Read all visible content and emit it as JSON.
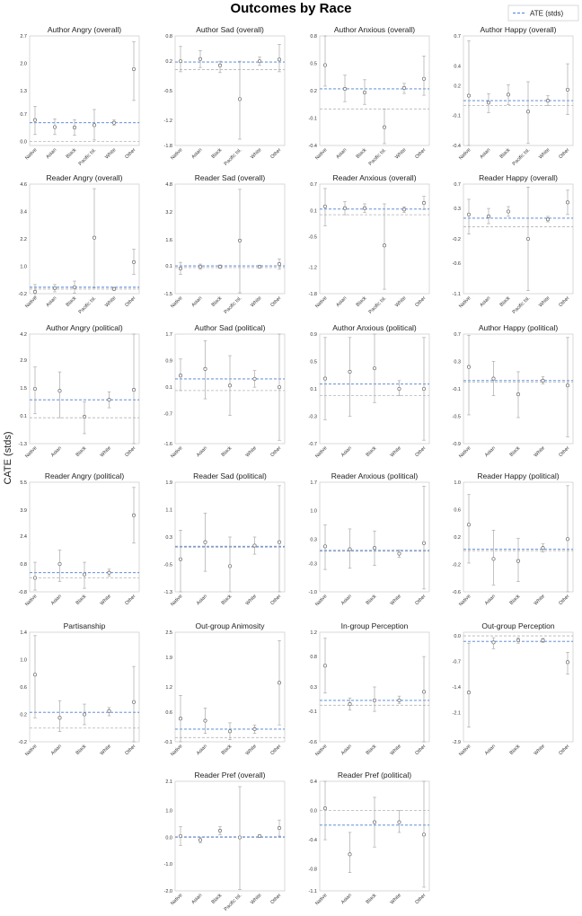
{
  "figure": {
    "title": "Outcomes by Race",
    "ylabel": "CATE (stds)",
    "legend_label": "ATE (stds)",
    "colors": {
      "ate_line": "#4a7fd6",
      "zero_line": "#b5b5b5",
      "errorbar": "#aaaaaa",
      "marker_edge": "#6b6b6b",
      "frame": "#d0d0d0"
    }
  },
  "chart_data": [
    {
      "type": "scatter",
      "title": "Author Angry (overall)",
      "categories": [
        "Native",
        "Asian",
        "Black",
        "Pacific Isl.",
        "White",
        "Other"
      ],
      "values": [
        0.55,
        0.37,
        0.36,
        0.42,
        0.48,
        1.85
      ],
      "lower": [
        0.18,
        0.18,
        0.16,
        0.04,
        0.42,
        1.05
      ],
      "upper": [
        0.9,
        0.58,
        0.56,
        0.82,
        0.55,
        2.55
      ],
      "ate": 0.48,
      "ylim": [
        -0.1,
        2.7
      ],
      "yticks": [
        "0.0",
        "0.7",
        "1.3",
        "2.0",
        "2.7"
      ],
      "ytick_values": [
        0.0,
        0.7,
        1.3,
        2.0,
        2.7
      ]
    },
    {
      "type": "scatter",
      "title": "Author Sad (overall)",
      "categories": [
        "Native",
        "Asian",
        "Black",
        "Pacific Isl.",
        "White",
        "Other"
      ],
      "values": [
        0.2,
        0.25,
        0.1,
        -0.7,
        0.2,
        0.24
      ],
      "lower": [
        -0.05,
        0.05,
        -0.07,
        -1.65,
        0.1,
        -0.05
      ],
      "upper": [
        0.55,
        0.45,
        0.2,
        0.2,
        0.3,
        0.6
      ],
      "ate": 0.18,
      "ylim": [
        -1.8,
        0.8
      ],
      "yticks": [
        "-1.8",
        "-1.2",
        "-0.5",
        "0.2",
        "0.8"
      ],
      "ytick_values": [
        -1.8,
        -1.2,
        -0.5,
        0.2,
        0.8
      ]
    },
    {
      "type": "scatter",
      "title": "Author Anxious (overall)",
      "categories": [
        "Native",
        "Asian",
        "Black",
        "Pacific Isl.",
        "White",
        "Other"
      ],
      "values": [
        0.48,
        0.22,
        0.18,
        -0.2,
        0.23,
        0.33
      ],
      "lower": [
        0.25,
        0.08,
        0.05,
        -0.38,
        0.17,
        0.15
      ],
      "upper": [
        0.8,
        0.37,
        0.32,
        0.0,
        0.28,
        0.58
      ],
      "ate": 0.22,
      "ylim": [
        -0.4,
        0.8
      ],
      "yticks": [
        "-0.4",
        "-0.1",
        "0.2",
        "0.5",
        "0.8"
      ],
      "ytick_values": [
        -0.4,
        -0.1,
        0.2,
        0.5,
        0.8
      ]
    },
    {
      "type": "scatter",
      "title": "Author Happy (overall)",
      "categories": [
        "Native",
        "Asian",
        "Black",
        "Pacific Isl.",
        "White",
        "Other"
      ],
      "values": [
        0.1,
        0.03,
        0.11,
        -0.06,
        0.05,
        0.16
      ],
      "lower": [
        -0.4,
        -0.07,
        0.01,
        -0.38,
        0.0,
        -0.09
      ],
      "upper": [
        0.65,
        0.12,
        0.21,
        0.24,
        0.1,
        0.42
      ],
      "ate": 0.05,
      "ylim": [
        -0.4,
        0.7
      ],
      "yticks": [
        "-0.4",
        "-0.1",
        "0.2",
        "0.4",
        "0.7"
      ],
      "ytick_values": [
        -0.4,
        -0.1,
        0.2,
        0.4,
        0.7
      ]
    },
    {
      "type": "scatter",
      "title": "Reader Angry (overall)",
      "categories": [
        "Native",
        "Asian",
        "Black",
        "Pacific Isl.",
        "White",
        "Other"
      ],
      "values": [
        -0.12,
        0.04,
        0.08,
        2.25,
        0.01,
        1.18
      ],
      "lower": [
        -0.35,
        -0.12,
        -0.18,
        0.05,
        -0.06,
        0.65
      ],
      "upper": [
        0.2,
        0.2,
        0.35,
        4.4,
        0.08,
        1.75
      ],
      "ate": 0.08,
      "ylim": [
        -0.2,
        4.6
      ],
      "yticks": [
        "-0.2",
        "1.0",
        "2.2",
        "3.4",
        "4.6"
      ],
      "ytick_values": [
        -0.2,
        1.0,
        2.2,
        3.4,
        4.6
      ]
    },
    {
      "type": "scatter",
      "title": "Reader Sad (overall)",
      "categories": [
        "Native",
        "Asian",
        "Black",
        "Pacific Isl.",
        "White",
        "Other"
      ],
      "values": [
        -0.05,
        0.05,
        0.05,
        1.55,
        0.05,
        0.2
      ],
      "lower": [
        -0.4,
        -0.1,
        -0.05,
        -1.45,
        0.0,
        -0.1
      ],
      "upper": [
        0.3,
        0.2,
        0.15,
        4.5,
        0.12,
        0.5
      ],
      "ate": 0.1,
      "ylim": [
        -1.5,
        4.8
      ],
      "yticks": [
        "-1.5",
        "0.1",
        "1.6",
        "3.2",
        "4.8"
      ],
      "ytick_values": [
        -1.5,
        0.1,
        1.6,
        3.2,
        4.8
      ]
    },
    {
      "type": "scatter",
      "title": "Reader Anxious (overall)",
      "categories": [
        "Native",
        "Asian",
        "Black",
        "Pacific Isl.",
        "White",
        "Other"
      ],
      "values": [
        0.19,
        0.15,
        0.15,
        -0.7,
        0.12,
        0.27
      ],
      "lower": [
        -0.25,
        0.0,
        0.05,
        -1.7,
        0.05,
        0.12
      ],
      "upper": [
        0.6,
        0.3,
        0.25,
        0.25,
        0.18,
        0.42
      ],
      "ate": 0.13,
      "ylim": [
        -1.8,
        0.7
      ],
      "yticks": [
        "-1.8",
        "-1.2",
        "-0.5",
        "0.1",
        "0.7"
      ],
      "ytick_values": [
        -1.8,
        -1.2,
        -0.5,
        0.1,
        0.7
      ]
    },
    {
      "type": "scatter",
      "title": "Reader Happy (overall)",
      "categories": [
        "Native",
        "Asian",
        "Black",
        "Pacific Isl.",
        "White",
        "Other"
      ],
      "values": [
        0.2,
        0.17,
        0.25,
        -0.2,
        0.12,
        0.4
      ],
      "lower": [
        -0.12,
        0.05,
        0.17,
        -1.05,
        0.08,
        0.2
      ],
      "upper": [
        0.45,
        0.3,
        0.33,
        0.65,
        0.17,
        0.6
      ],
      "ate": 0.14,
      "ylim": [
        -1.1,
        0.7
      ],
      "yticks": [
        "-1.1",
        "-0.6",
        "-0.2",
        "0.3",
        "0.7"
      ],
      "ytick_values": [
        -1.1,
        -0.6,
        -0.2,
        0.3,
        0.7
      ]
    },
    {
      "type": "scatter",
      "title": "Author Angry (political)",
      "categories": [
        "Native",
        "Asian",
        "Black",
        "White",
        "Other"
      ],
      "values": [
        1.45,
        1.35,
        0.05,
        0.9,
        1.4
      ],
      "lower": [
        0.2,
        0.0,
        -0.8,
        0.5,
        -1.3
      ],
      "upper": [
        2.55,
        2.3,
        0.8,
        1.3,
        4.2
      ],
      "ate": 0.9,
      "ylim": [
        -1.3,
        4.2
      ],
      "yticks": [
        "-1.3",
        "0.1",
        "1.5",
        "2.9",
        "4.2"
      ],
      "ytick_values": [
        -1.3,
        0.1,
        1.5,
        2.9,
        4.2
      ]
    },
    {
      "type": "scatter",
      "title": "Author Sad (political)",
      "categories": [
        "Native",
        "Asian",
        "Black",
        "White",
        "Other"
      ],
      "values": [
        0.45,
        0.65,
        0.15,
        0.35,
        0.1
      ],
      "lower": [
        0.0,
        -0.25,
        -0.75,
        0.1,
        -1.5
      ],
      "upper": [
        0.95,
        1.5,
        1.05,
        0.6,
        1.7
      ],
      "ate": 0.35,
      "ylim": [
        -1.6,
        1.7
      ],
      "yticks": [
        "-1.6",
        "-0.7",
        "0.1",
        "0.9",
        "1.7"
      ],
      "ytick_values": [
        -1.6,
        -0.7,
        0.1,
        0.9,
        1.7
      ]
    },
    {
      "type": "scatter",
      "title": "Author Anxious (political)",
      "categories": [
        "Native",
        "Asian",
        "Black",
        "White",
        "Other"
      ],
      "values": [
        0.25,
        0.35,
        0.4,
        0.1,
        0.1
      ],
      "lower": [
        -0.35,
        -0.3,
        -0.1,
        0.0,
        -0.65
      ],
      "upper": [
        0.85,
        0.85,
        0.9,
        0.22,
        0.85
      ],
      "ate": 0.17,
      "ylim": [
        -0.7,
        0.9
      ],
      "yticks": [
        "-0.7",
        "-0.3",
        "0.1",
        "0.5",
        "0.9"
      ],
      "ytick_values": [
        -0.7,
        -0.3,
        0.1,
        0.5,
        0.9
      ]
    },
    {
      "type": "scatter",
      "title": "Author Happy (political)",
      "categories": [
        "Native",
        "Asian",
        "Black",
        "White",
        "Other"
      ],
      "values": [
        0.22,
        0.05,
        -0.18,
        0.02,
        -0.05
      ],
      "lower": [
        -0.48,
        -0.2,
        -0.52,
        -0.03,
        -0.8
      ],
      "upper": [
        0.68,
        0.3,
        0.15,
        0.08,
        0.65
      ],
      "ate": 0.02,
      "ylim": [
        -0.9,
        0.7
      ],
      "yticks": [
        "-0.9",
        "-0.5",
        "-0.1",
        "0.3",
        "0.7"
      ],
      "ytick_values": [
        -0.9,
        -0.5,
        -0.1,
        0.3,
        0.7
      ]
    },
    {
      "type": "scatter",
      "title": "Reader Angry (political)",
      "categories": [
        "Native",
        "Asian",
        "Black",
        "White",
        "Other"
      ],
      "values": [
        0.0,
        0.8,
        0.2,
        0.3,
        3.6
      ],
      "lower": [
        -0.7,
        -0.2,
        -0.6,
        0.1,
        2.0
      ],
      "upper": [
        0.9,
        1.6,
        0.9,
        0.5,
        5.2
      ],
      "ate": 0.3,
      "ylim": [
        -0.8,
        5.5
      ],
      "yticks": [
        "-0.8",
        "0.8",
        "2.4",
        "3.9",
        "5.5"
      ],
      "ytick_values": [
        -0.8,
        0.8,
        2.4,
        3.9,
        5.5
      ]
    },
    {
      "type": "scatter",
      "title": "Reader Sad (political)",
      "categories": [
        "Native",
        "Asian",
        "Black",
        "White",
        "Other"
      ],
      "values": [
        -0.35,
        0.15,
        -0.55,
        0.05,
        0.15
      ],
      "lower": [
        -1.3,
        -0.7,
        -1.3,
        -0.2,
        -1.3
      ],
      "upper": [
        0.5,
        1.0,
        0.3,
        0.3,
        1.8
      ],
      "ate": 0.03,
      "ylim": [
        -1.3,
        1.9
      ],
      "yticks": [
        "-1.3",
        "-0.5",
        "0.3",
        "1.1",
        "1.9"
      ],
      "ytick_values": [
        -1.3,
        -0.5,
        0.3,
        1.1,
        1.9
      ]
    },
    {
      "type": "scatter",
      "title": "Reader Anxious (political)",
      "categories": [
        "Native",
        "Asian",
        "Black",
        "White",
        "Other"
      ],
      "values": [
        0.12,
        0.05,
        0.08,
        -0.06,
        0.2
      ],
      "lower": [
        -0.45,
        -0.42,
        -0.35,
        -0.15,
        -0.93
      ],
      "upper": [
        0.65,
        0.55,
        0.5,
        0.03,
        1.6
      ],
      "ate": 0.02,
      "ylim": [
        -1.0,
        1.7
      ],
      "yticks": [
        "-1.0",
        "-0.3",
        "0.3",
        "1.0",
        "1.7"
      ],
      "ytick_values": [
        -1.0,
        -0.3,
        0.3,
        1.0,
        1.7
      ]
    },
    {
      "type": "scatter",
      "title": "Reader Happy (political)",
      "categories": [
        "Native",
        "Asian",
        "Black",
        "White",
        "Other"
      ],
      "values": [
        0.38,
        -0.12,
        -0.15,
        0.04,
        0.17
      ],
      "lower": [
        -0.18,
        -0.5,
        -0.45,
        -0.02,
        -0.6
      ],
      "upper": [
        0.82,
        0.3,
        0.18,
        0.1,
        0.95
      ],
      "ate": 0.02,
      "ylim": [
        -0.6,
        1.0
      ],
      "yticks": [
        "-0.6",
        "-0.2",
        "0.2",
        "0.6",
        "1.0"
      ],
      "ytick_values": [
        -0.6,
        -0.2,
        0.2,
        0.6,
        1.0
      ]
    },
    {
      "type": "scatter",
      "title": "Partisanship",
      "categories": [
        "Native",
        "Asian",
        "Black",
        "White",
        "Other"
      ],
      "values": [
        0.78,
        0.15,
        0.2,
        0.25,
        0.38
      ],
      "lower": [
        0.15,
        -0.05,
        0.05,
        0.18,
        -0.2
      ],
      "upper": [
        1.35,
        0.4,
        0.35,
        0.3,
        0.9
      ],
      "ate": 0.23,
      "ylim": [
        -0.2,
        1.4
      ],
      "yticks": [
        "-0.2",
        "0.2",
        "0.6",
        "1.0",
        "1.4"
      ],
      "ytick_values": [
        -0.2,
        0.2,
        0.6,
        1.0,
        1.4
      ]
    },
    {
      "type": "scatter",
      "title": "Out-group Animosity",
      "categories": [
        "Native",
        "Asian",
        "Black",
        "White",
        "Other"
      ],
      "values": [
        0.45,
        0.4,
        0.15,
        0.2,
        1.3
      ],
      "lower": [
        -0.1,
        0.1,
        -0.05,
        0.1,
        0.3
      ],
      "upper": [
        1.0,
        0.7,
        0.35,
        0.3,
        2.3
      ],
      "ate": 0.2,
      "ylim": [
        -0.1,
        2.5
      ],
      "yticks": [
        "-0.1",
        "0.6",
        "1.2",
        "1.9",
        "2.5"
      ],
      "ytick_values": [
        -0.1,
        0.6,
        1.2,
        1.9,
        2.5
      ]
    },
    {
      "type": "scatter",
      "title": "In-group Perception",
      "categories": [
        "Native",
        "Asian",
        "Black",
        "White",
        "Other"
      ],
      "values": [
        0.65,
        0.02,
        0.08,
        0.08,
        0.22
      ],
      "lower": [
        0.2,
        -0.08,
        -0.1,
        0.03,
        -0.6
      ],
      "upper": [
        1.1,
        0.12,
        0.3,
        0.15,
        0.8
      ],
      "ate": 0.08,
      "ylim": [
        -0.6,
        1.2
      ],
      "yticks": [
        "-0.6",
        "-0.1",
        "0.3",
        "0.8",
        "1.2"
      ],
      "ytick_values": [
        -0.6,
        -0.1,
        0.3,
        0.8,
        1.2
      ]
    },
    {
      "type": "scatter",
      "title": "Out-group Perception",
      "categories": [
        "Native",
        "Asian",
        "Black",
        "White",
        "Other"
      ],
      "values": [
        -1.55,
        -0.18,
        -0.12,
        -0.12,
        -0.72
      ],
      "lower": [
        -2.5,
        -0.35,
        -0.2,
        -0.18,
        -1.05
      ],
      "upper": [
        -0.2,
        -0.05,
        -0.05,
        -0.07,
        -0.45
      ],
      "ate": -0.15,
      "ylim": [
        -2.9,
        0.1
      ],
      "yticks": [
        "-2.9",
        "-2.1",
        "-1.4",
        "-0.7",
        "0.0"
      ],
      "ytick_values": [
        -2.9,
        -2.1,
        -1.4,
        -0.7,
        0.0
      ]
    },
    {
      "type": "scatter",
      "title": "Reader Pref (overall)",
      "categories": [
        "Native",
        "Asian",
        "Black",
        "Pacific Isl.",
        "White",
        "Other"
      ],
      "values": [
        0.05,
        -0.1,
        0.25,
        0.0,
        0.05,
        0.35
      ],
      "lower": [
        -0.3,
        -0.2,
        0.1,
        -1.95,
        0.0,
        0.05
      ],
      "upper": [
        0.4,
        0.0,
        0.4,
        1.9,
        0.1,
        0.65
      ],
      "ate": 0.02,
      "ylim": [
        -2.0,
        2.1
      ],
      "yticks": [
        "-2.0",
        "-1.0",
        "0.0",
        "1.0",
        "2.1"
      ],
      "ytick_values": [
        -2.0,
        -1.0,
        0.0,
        1.0,
        2.1
      ]
    },
    {
      "type": "scatter",
      "title": "Reader Pref (political)",
      "categories": [
        "Native",
        "Asian",
        "Black",
        "White",
        "Other"
      ],
      "values": [
        0.03,
        -0.6,
        -0.16,
        -0.16,
        -0.33
      ],
      "lower": [
        -0.4,
        -0.85,
        -0.5,
        -0.3,
        -1.05
      ],
      "upper": [
        0.4,
        -0.3,
        0.18,
        0.0,
        0.4
      ],
      "ate": -0.2,
      "ylim": [
        -1.1,
        0.4
      ],
      "yticks": [
        "-1.1",
        "-0.8",
        "-0.4",
        "0.0",
        "0.4"
      ],
      "ytick_values": [
        -1.1,
        -0.8,
        -0.4,
        0.0,
        0.4
      ]
    }
  ]
}
